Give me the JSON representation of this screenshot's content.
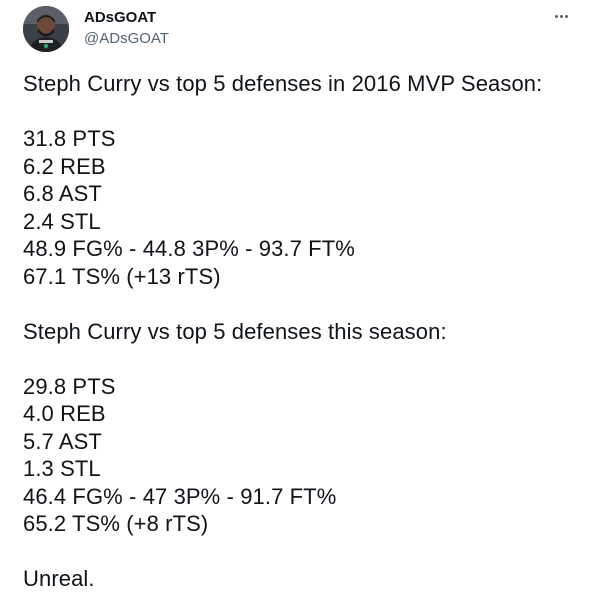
{
  "author": {
    "display_name": "ADsGOAT",
    "handle": "@ADsGOAT",
    "avatar_icon": "user-avatar"
  },
  "tweet": {
    "section1_heading": "Steph Curry vs top 5 defenses in 2016 MVP Season:",
    "section1_lines": [
      "31.8 PTS",
      "6.2 REB",
      "6.8 AST",
      "2.4 STL",
      "48.9 FG% - 44.8 3P% - 93.7 FT%",
      "67.1 TS% (+13 rTS)"
    ],
    "section2_heading": "Steph Curry vs top 5 defenses this season:",
    "section2_lines": [
      "29.8 PTS",
      "4.0 REB",
      "5.7 AST",
      "1.3 STL",
      "46.4 FG% - 47 3P% - 91.7 FT%",
      "65.2 TS% (+8 rTS)"
    ],
    "closing": "Unreal."
  },
  "colors": {
    "text_primary": "#0f1419",
    "text_secondary": "#536471",
    "background": "#ffffff"
  }
}
